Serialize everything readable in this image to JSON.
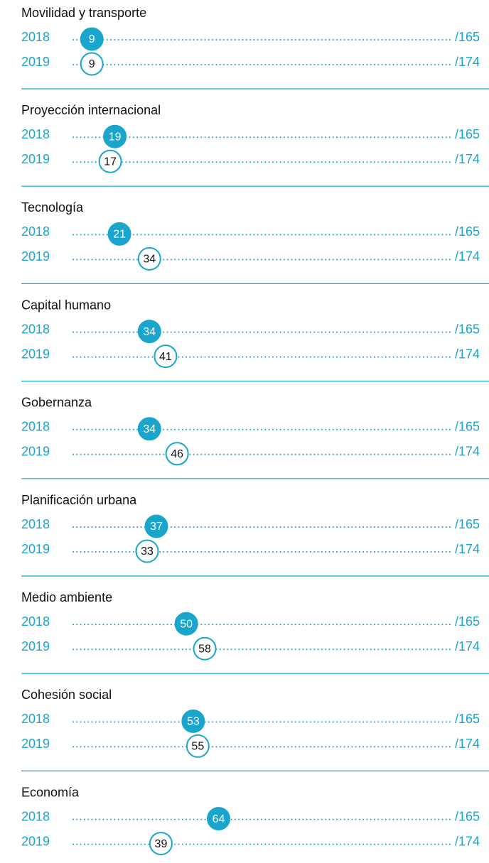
{
  "chart_data": {
    "type": "rank-dots",
    "xlim": [
      0,
      165
    ],
    "fill_color": "#1aa5cc",
    "outline_color": "#1aa5cc",
    "sections": [
      {
        "title": "Movilidad y transporte",
        "rows": [
          {
            "year": "2018",
            "rank": 9,
            "total": "/165"
          },
          {
            "year": "2019",
            "rank": 9,
            "total": "/174"
          }
        ]
      },
      {
        "title": "Proyección internacional",
        "rows": [
          {
            "year": "2018",
            "rank": 19,
            "total": "/165"
          },
          {
            "year": "2019",
            "rank": 17,
            "total": "/174"
          }
        ]
      },
      {
        "title": "Tecnología",
        "rows": [
          {
            "year": "2018",
            "rank": 21,
            "total": "/165"
          },
          {
            "year": "2019",
            "rank": 34,
            "total": "/174"
          }
        ]
      },
      {
        "title": "Capital humano",
        "rows": [
          {
            "year": "2018",
            "rank": 34,
            "total": "/165"
          },
          {
            "year": "2019",
            "rank": 41,
            "total": "/174"
          }
        ]
      },
      {
        "title": "Gobernanza",
        "rows": [
          {
            "year": "2018",
            "rank": 34,
            "total": "/165"
          },
          {
            "year": "2019",
            "rank": 46,
            "total": "/174"
          }
        ]
      },
      {
        "title": "Planificación urbana",
        "rows": [
          {
            "year": "2018",
            "rank": 37,
            "total": "/165"
          },
          {
            "year": "2019",
            "rank": 33,
            "total": "/174"
          }
        ]
      },
      {
        "title": "Medio ambiente",
        "rows": [
          {
            "year": "2018",
            "rank": 50,
            "total": "/165"
          },
          {
            "year": "2019",
            "rank": 58,
            "total": "/174"
          }
        ]
      },
      {
        "title": "Cohesión social",
        "rows": [
          {
            "year": "2018",
            "rank": 53,
            "total": "/165"
          },
          {
            "year": "2019",
            "rank": 55,
            "total": "/174"
          }
        ]
      },
      {
        "title": "Economía",
        "rows": [
          {
            "year": "2018",
            "rank": 64,
            "total": "/165"
          },
          {
            "year": "2019",
            "rank": 39,
            "total": "/174"
          }
        ]
      }
    ]
  }
}
